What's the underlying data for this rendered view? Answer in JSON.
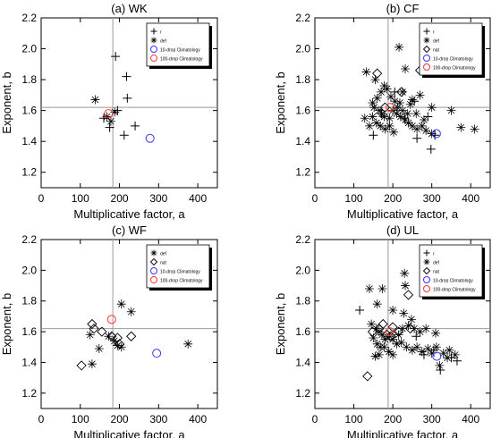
{
  "figure": {
    "panels": [
      {
        "title": "(a) WK",
        "xlabel": "Multiplicative factor, a",
        "ylabel": "Exponent, b"
      },
      {
        "title": "(b) CF",
        "xlabel": "Multiplicative factor, a",
        "ylabel": "Exponent, b"
      },
      {
        "title": "(c) WF",
        "xlabel": "Multiplicative factor, a",
        "ylabel": "Exponent, b"
      },
      {
        "title": "(d) UL",
        "xlabel": "Multiplicative factor, a",
        "ylabel": "Exponent, b"
      }
    ]
  },
  "colors": {
    "axis": "#000000",
    "reference_line": "#999999",
    "clim10": "#3333ff",
    "clim100": "#ff3333"
  },
  "chart_data": [
    {
      "type": "scatter",
      "title": "(a) WK",
      "xlabel": "Multiplicative factor, a",
      "ylabel": "Exponent, b",
      "xlim": [
        0,
        450
      ],
      "ylim": [
        1.1,
        2.2
      ],
      "xticks": [
        0,
        100,
        200,
        300,
        400
      ],
      "yticks": [
        1.2,
        1.4,
        1.6,
        1.8,
        2.0,
        2.2
      ],
      "grid": false,
      "reference_lines": {
        "x": 183,
        "y": 1.62
      },
      "legend": {
        "position": "top-right",
        "entries": [
          {
            "label": "r",
            "marker": "plus"
          },
          {
            "label": "def",
            "marker": "star"
          },
          {
            "label": "10-drop Climatology",
            "marker": "circle",
            "color": "#3333ff"
          },
          {
            "label": "100-drop Climatology",
            "marker": "circle",
            "color": "#ff3333"
          }
        ]
      },
      "series": [
        {
          "name": "r",
          "marker": "plus",
          "points": [
            [
              190,
              1.95
            ],
            [
              218,
              1.82
            ],
            [
              220,
              1.68
            ],
            [
              212,
              1.44
            ],
            [
              240,
              1.5
            ],
            [
              175,
              1.49
            ],
            [
              195,
              1.6
            ],
            [
              160,
              1.55
            ]
          ]
        },
        {
          "name": "def",
          "marker": "star",
          "points": [
            [
              138,
              1.67
            ],
            [
              168,
              1.56
            ],
            [
              178,
              1.53
            ],
            [
              188,
              1.59
            ]
          ]
        },
        {
          "name": "10-drop Climatology",
          "marker": "circle",
          "points": [
            [
              278,
              1.42
            ]
          ]
        },
        {
          "name": "100-drop Climatology",
          "marker": "circle",
          "points": [
            [
              172,
              1.58
            ]
          ]
        }
      ]
    },
    {
      "type": "scatter",
      "title": "(b) CF",
      "xlabel": "Multiplicative factor, a",
      "ylabel": "Exponent, b",
      "xlim": [
        0,
        450
      ],
      "ylim": [
        1.1,
        2.2
      ],
      "xticks": [
        0,
        100,
        200,
        300,
        400
      ],
      "yticks": [
        1.2,
        1.4,
        1.6,
        1.8,
        2.0,
        2.2
      ],
      "grid": false,
      "reference_lines": {
        "x": 188,
        "y": 1.62
      },
      "legend": {
        "position": "top-right",
        "entries": [
          {
            "label": "r",
            "marker": "plus"
          },
          {
            "label": "def",
            "marker": "star"
          },
          {
            "label": "nat",
            "marker": "diamond"
          },
          {
            "label": "10-drop Climatology",
            "marker": "circle",
            "color": "#3333ff"
          },
          {
            "label": "100-drop Climatology",
            "marker": "circle",
            "color": "#ff3333"
          }
        ]
      },
      "series": [
        {
          "name": "r",
          "marker": "plus",
          "points": [
            [
              150,
              1.44
            ],
            [
              170,
              1.58
            ],
            [
              205,
              1.72
            ],
            [
              230,
              1.55
            ],
            [
              255,
              1.66
            ],
            [
              262,
              1.42
            ],
            [
              290,
              1.56
            ],
            [
              298,
              1.35
            ],
            [
              308,
              1.44
            ]
          ]
        },
        {
          "name": "def",
          "marker": "star",
          "points": [
            [
              216,
              2.01
            ],
            [
              132,
              1.85
            ],
            [
              232,
              1.87
            ],
            [
              155,
              1.8
            ],
            [
              178,
              1.76
            ],
            [
              185,
              1.74
            ],
            [
              225,
              1.72
            ],
            [
              250,
              1.67
            ],
            [
              270,
              1.7
            ],
            [
              300,
              1.62
            ],
            [
              160,
              1.68
            ],
            [
              148,
              1.65
            ],
            [
              152,
              1.62
            ],
            [
              165,
              1.6
            ],
            [
              172,
              1.58
            ],
            [
              178,
              1.56
            ],
            [
              192,
              1.55
            ],
            [
              200,
              1.6
            ],
            [
              210,
              1.58
            ],
            [
              220,
              1.56
            ],
            [
              232,
              1.54
            ],
            [
              240,
              1.52
            ],
            [
              250,
              1.5
            ],
            [
              262,
              1.48
            ],
            [
              275,
              1.5
            ],
            [
              285,
              1.47
            ],
            [
              300,
              1.45
            ],
            [
              148,
              1.56
            ],
            [
              158,
              1.52
            ],
            [
              168,
              1.5
            ],
            [
              180,
              1.48
            ],
            [
              192,
              1.5
            ],
            [
              202,
              1.46
            ],
            [
              140,
              1.5
            ],
            [
              128,
              1.55
            ],
            [
              205,
              1.66
            ],
            [
              212,
              1.62
            ],
            [
              218,
              1.65
            ],
            [
              225,
              1.6
            ],
            [
              238,
              1.58
            ],
            [
              245,
              1.64
            ],
            [
              350,
              1.6
            ],
            [
              375,
              1.49
            ],
            [
              410,
              1.48
            ],
            [
              170,
              1.72
            ],
            [
              195,
              1.69
            ],
            [
              260,
              1.58
            ],
            [
              280,
              1.54
            ]
          ]
        },
        {
          "name": "nat",
          "marker": "diamond",
          "points": [
            [
              160,
              1.84
            ],
            [
              180,
              1.62
            ],
            [
              222,
              1.72
            ],
            [
              270,
              1.86
            ]
          ]
        },
        {
          "name": "10-drop Climatology",
          "marker": "circle",
          "points": [
            [
              312,
              1.45
            ]
          ]
        },
        {
          "name": "100-drop Climatology",
          "marker": "circle",
          "points": [
            [
              193,
              1.62
            ]
          ]
        }
      ]
    },
    {
      "type": "scatter",
      "title": "(c) WF",
      "xlabel": "Multiplicative factor, a",
      "ylabel": "Exponent, b",
      "xlim": [
        0,
        450
      ],
      "ylim": [
        1.1,
        2.2
      ],
      "xticks": [
        0,
        100,
        200,
        300,
        400
      ],
      "yticks": [
        1.2,
        1.4,
        1.6,
        1.8,
        2.0,
        2.2
      ],
      "grid": false,
      "reference_lines": {
        "x": 183,
        "y": 1.62
      },
      "legend": {
        "position": "top-right",
        "entries": [
          {
            "label": "def",
            "marker": "star"
          },
          {
            "label": "nat",
            "marker": "diamond"
          },
          {
            "label": "10-drop Climatology",
            "marker": "circle",
            "color": "#3333ff"
          },
          {
            "label": "100-drop Climatology",
            "marker": "circle",
            "color": "#ff3333"
          }
        ]
      },
      "series": [
        {
          "name": "def",
          "marker": "star",
          "points": [
            [
              205,
              1.78
            ],
            [
              230,
              1.73
            ],
            [
              125,
              1.58
            ],
            [
              148,
              1.49
            ],
            [
              172,
              1.57
            ],
            [
              187,
              1.54
            ],
            [
              195,
              1.51
            ],
            [
              205,
              1.5
            ],
            [
              130,
              1.39
            ],
            [
              375,
              1.52
            ]
          ]
        },
        {
          "name": "nat",
          "marker": "diamond",
          "points": [
            [
              130,
              1.65
            ],
            [
              135,
              1.62
            ],
            [
              155,
              1.6
            ],
            [
              180,
              1.57
            ],
            [
              195,
              1.56
            ],
            [
              230,
              1.57
            ],
            [
              103,
              1.38
            ],
            [
              200,
              1.52
            ]
          ]
        },
        {
          "name": "10-drop Climatology",
          "marker": "circle",
          "points": [
            [
              295,
              1.46
            ]
          ]
        },
        {
          "name": "100-drop Climatology",
          "marker": "circle",
          "points": [
            [
              180,
              1.68
            ]
          ]
        }
      ]
    },
    {
      "type": "scatter",
      "title": "(d) UL",
      "xlabel": "Multiplicative factor, a",
      "ylabel": "Exponent, b",
      "xlim": [
        0,
        450
      ],
      "ylim": [
        1.1,
        2.2
      ],
      "xticks": [
        0,
        100,
        200,
        300,
        400
      ],
      "yticks": [
        1.2,
        1.4,
        1.6,
        1.8,
        2.0,
        2.2
      ],
      "grid": false,
      "reference_lines": {
        "x": 188,
        "y": 1.62
      },
      "legend": {
        "position": "top-right",
        "entries": [
          {
            "label": "r",
            "marker": "plus"
          },
          {
            "label": "def",
            "marker": "star"
          },
          {
            "label": "nat",
            "marker": "diamond"
          },
          {
            "label": "10-drop Climatology",
            "marker": "circle",
            "color": "#3333ff"
          },
          {
            "label": "100-drop Climatology",
            "marker": "circle",
            "color": "#ff3333"
          }
        ]
      },
      "series": [
        {
          "name": "r",
          "marker": "plus",
          "points": [
            [
              115,
              1.74
            ],
            [
              260,
              1.57
            ],
            [
              280,
              1.45
            ],
            [
              305,
              1.48
            ],
            [
              322,
              1.35
            ],
            [
              350,
              1.43
            ],
            [
              365,
              1.41
            ]
          ]
        },
        {
          "name": "def",
          "marker": "star",
          "points": [
            [
              230,
              1.98
            ],
            [
              232,
              1.9
            ],
            [
              140,
              1.88
            ],
            [
              173,
              1.88
            ],
            [
              160,
              1.78
            ],
            [
              200,
              1.74
            ],
            [
              228,
              1.72
            ],
            [
              248,
              1.68
            ],
            [
              145,
              1.65
            ],
            [
              158,
              1.62
            ],
            [
              165,
              1.6
            ],
            [
              172,
              1.58
            ],
            [
              180,
              1.55
            ],
            [
              192,
              1.57
            ],
            [
              200,
              1.55
            ],
            [
              210,
              1.52
            ],
            [
              222,
              1.53
            ],
            [
              235,
              1.5
            ],
            [
              250,
              1.48
            ],
            [
              262,
              1.5
            ],
            [
              275,
              1.47
            ],
            [
              290,
              1.49
            ],
            [
              300,
              1.46
            ],
            [
              312,
              1.5
            ],
            [
              330,
              1.46
            ],
            [
              345,
              1.48
            ],
            [
              150,
              1.56
            ],
            [
              160,
              1.52
            ],
            [
              168,
              1.5
            ],
            [
              178,
              1.5
            ],
            [
              190,
              1.47
            ],
            [
              200,
              1.45
            ],
            [
              215,
              1.58
            ],
            [
              225,
              1.62
            ],
            [
              240,
              1.64
            ],
            [
              255,
              1.62
            ],
            [
              270,
              1.6
            ],
            [
              285,
              1.62
            ],
            [
              310,
              1.59
            ],
            [
              155,
              1.44
            ],
            [
              165,
              1.45
            ],
            [
              320,
              1.38
            ],
            [
              340,
              1.43
            ],
            [
              360,
              1.45
            ]
          ]
        },
        {
          "name": "nat",
          "marker": "diamond",
          "points": [
            [
              148,
              1.6
            ],
            [
              165,
              1.62
            ],
            [
              175,
              1.65
            ],
            [
              185,
              1.58
            ],
            [
              200,
              1.63
            ],
            [
              215,
              1.6
            ],
            [
              240,
              1.84
            ],
            [
              245,
              1.62
            ],
            [
              135,
              1.31
            ],
            [
              195,
              1.57
            ]
          ]
        },
        {
          "name": "10-drop Climatology",
          "marker": "circle",
          "points": [
            [
              313,
              1.44
            ]
          ]
        },
        {
          "name": "100-drop Climatology",
          "marker": "circle",
          "points": [
            [
              192,
              1.6
            ]
          ]
        }
      ]
    }
  ]
}
